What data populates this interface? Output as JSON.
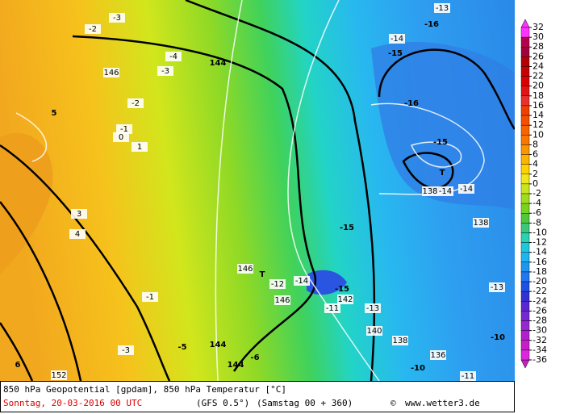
{
  "map": {
    "labels": [
      "-3",
      "-2",
      "144",
      "-4",
      "-3",
      "146",
      "-13",
      "-16",
      "-14",
      "-15",
      "5",
      "-2",
      "-1",
      "0",
      "1",
      "-16",
      "-15",
      "T",
      "138",
      "-14",
      "-14",
      "-15",
      "138",
      "-13",
      "146",
      "T",
      "-12",
      "-14",
      "146",
      "-15",
      "142",
      "-11",
      "-13",
      "140",
      "138",
      "-10",
      "-5",
      "-1",
      "-3",
      "144",
      "-6",
      "144",
      "-10",
      "-11",
      "136",
      "6",
      "3",
      "4",
      "152"
    ]
  },
  "colorbar": {
    "ticks": [
      32,
      30,
      28,
      26,
      24,
      22,
      20,
      18,
      16,
      14,
      12,
      10,
      8,
      6,
      4,
      2,
      0,
      -2,
      -4,
      -6,
      -8,
      -10,
      -12,
      -14,
      -16,
      -18,
      -20,
      -22,
      -24,
      -26,
      -28,
      -30,
      -32,
      -34,
      -36
    ]
  },
  "footer": {
    "description": "850 hPa Geopotential [gpdam], 850 hPa Temperatur [°C]",
    "date": "Sonntag, 20-03-2016  00 UTC",
    "model": "(GFS 0.5°)",
    "run": "(Samstag 00 + 360)",
    "copyright_symbol": "©",
    "website": "www.wetter3.de"
  }
}
